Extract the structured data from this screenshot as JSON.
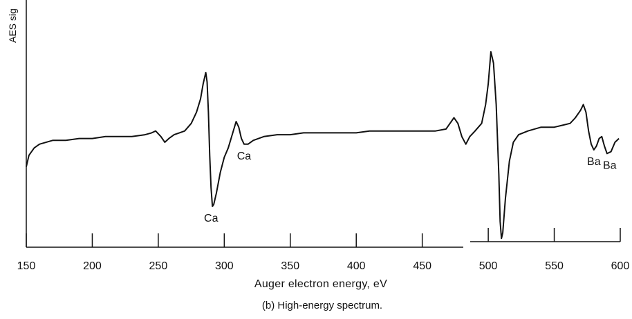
{
  "chart_data": {
    "type": "line",
    "xlabel": "Auger electron energy, eV",
    "ylabel": "AES sig",
    "caption": "(b) High-energy spectrum.",
    "xlim": [
      150,
      600
    ],
    "xticks": [
      150,
      200,
      250,
      300,
      350,
      400,
      450,
      500,
      550,
      600
    ],
    "grid": false,
    "y_scale": "arbitrary units (relative signal, 0 = bottom of trace, 100 = top of tallest peak)",
    "series": [
      {
        "name": "",
        "color": "#111111",
        "points": [
          [
            150,
            39
          ],
          [
            152,
            45
          ],
          [
            156,
            49
          ],
          [
            160,
            51
          ],
          [
            170,
            53
          ],
          [
            180,
            53
          ],
          [
            190,
            54
          ],
          [
            200,
            54
          ],
          [
            210,
            55
          ],
          [
            220,
            55
          ],
          [
            230,
            55
          ],
          [
            240,
            56
          ],
          [
            245,
            57
          ],
          [
            248,
            58
          ],
          [
            252,
            55
          ],
          [
            255,
            52
          ],
          [
            258,
            54
          ],
          [
            262,
            56
          ],
          [
            266,
            57
          ],
          [
            270,
            58
          ],
          [
            275,
            62
          ],
          [
            279,
            68
          ],
          [
            282,
            75
          ],
          [
            284,
            83
          ],
          [
            286,
            89
          ],
          [
            287,
            84
          ],
          [
            288,
            68
          ],
          [
            289,
            45
          ],
          [
            290,
            28
          ],
          [
            291,
            18
          ],
          [
            292,
            19
          ],
          [
            294,
            25
          ],
          [
            297,
            36
          ],
          [
            300,
            44
          ],
          [
            303,
            49
          ],
          [
            306,
            56
          ],
          [
            309,
            63
          ],
          [
            311,
            60
          ],
          [
            313,
            54
          ],
          [
            315,
            51
          ],
          [
            318,
            51
          ],
          [
            322,
            53
          ],
          [
            330,
            55
          ],
          [
            340,
            56
          ],
          [
            350,
            56
          ],
          [
            360,
            57
          ],
          [
            370,
            57
          ],
          [
            380,
            57
          ],
          [
            390,
            57
          ],
          [
            400,
            57
          ],
          [
            410,
            58
          ],
          [
            420,
            58
          ],
          [
            430,
            58
          ],
          [
            440,
            58
          ],
          [
            450,
            58
          ],
          [
            460,
            58
          ],
          [
            468,
            59
          ],
          [
            471,
            62
          ],
          [
            474,
            65
          ],
          [
            477,
            62
          ],
          [
            480,
            55
          ],
          [
            483,
            51
          ],
          [
            486,
            55
          ],
          [
            490,
            58
          ],
          [
            495,
            62
          ],
          [
            498,
            72
          ],
          [
            500,
            83
          ],
          [
            502,
            100
          ],
          [
            504,
            94
          ],
          [
            506,
            72
          ],
          [
            508,
            35
          ],
          [
            509,
            10
          ],
          [
            510,
            1
          ],
          [
            511,
            4
          ],
          [
            513,
            22
          ],
          [
            516,
            42
          ],
          [
            519,
            52
          ],
          [
            523,
            56
          ],
          [
            530,
            58
          ],
          [
            540,
            60
          ],
          [
            550,
            60
          ],
          [
            556,
            61
          ],
          [
            562,
            62
          ],
          [
            566,
            65
          ],
          [
            570,
            69
          ],
          [
            572,
            72
          ],
          [
            574,
            68
          ],
          [
            576,
            58
          ],
          [
            578,
            51
          ],
          [
            580,
            48
          ],
          [
            582,
            50
          ],
          [
            584,
            54
          ],
          [
            586,
            55
          ],
          [
            588,
            50
          ],
          [
            590,
            46
          ],
          [
            593,
            47
          ],
          [
            596,
            52
          ],
          [
            599,
            54
          ]
        ]
      }
    ],
    "annotations": [
      {
        "text": "Ca",
        "x": 290,
        "position": "below"
      },
      {
        "text": "Ca",
        "x": 315,
        "position": "below"
      },
      {
        "text": "Ba",
        "x": 580,
        "position": "below"
      },
      {
        "text": "Ba",
        "x": 592,
        "position": "below"
      }
    ]
  }
}
